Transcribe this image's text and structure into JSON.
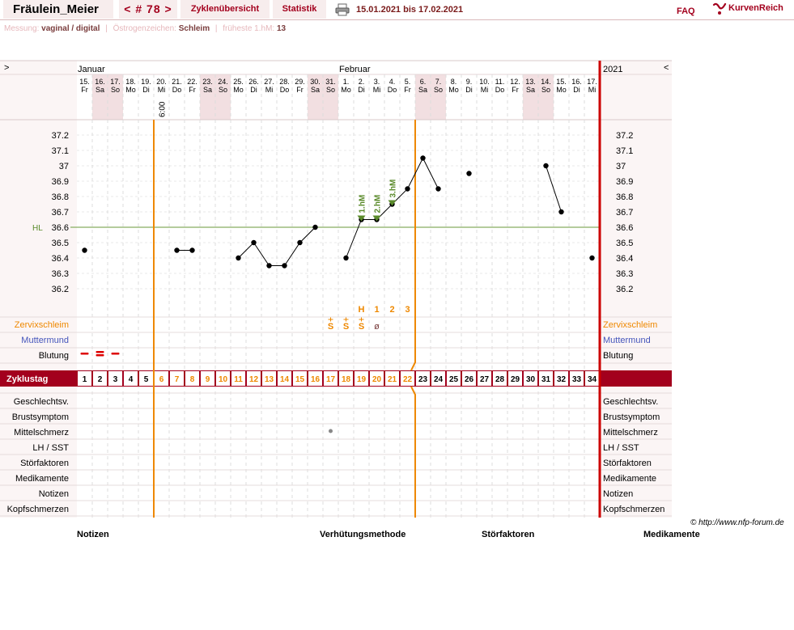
{
  "header": {
    "username": "Fräulein_Meier",
    "cycle_label": "< # 78 >",
    "overview_label": "Zyklenübersicht",
    "stats_label": "Statistik",
    "date_range": "15.01.2021 bis 17.02.2021",
    "faq_label": "FAQ",
    "logo_text": "KurvenReich",
    "print_icon": "printer-icon"
  },
  "info": {
    "messung_label": "Messung:",
    "messung_value": "vaginal / digital",
    "oestrogen_label": "Östrogenzeichen:",
    "oestrogen_value": "Schleim",
    "hm_label": "früheste 1.hM:",
    "hm_value": "13"
  },
  "nav": {
    "left": ">",
    "right": "<"
  },
  "months": [
    {
      "label": "Januar",
      "start_day": 0
    },
    {
      "label": "Februar",
      "start_day": 17
    }
  ],
  "year_label": "2021",
  "cycle_row_label": "Zyklustag",
  "temp_time_label": "6:00",
  "hl_label": "HL",
  "chart_data": {
    "type": "line",
    "title": "",
    "ylabel": "",
    "ylim": [
      36.15,
      37.25
    ],
    "yticks": [
      "37.2",
      "37.1",
      "37",
      "36.9",
      "36.8",
      "36.7",
      "36.6",
      "36.5",
      "36.4",
      "36.3",
      "36.2"
    ],
    "days": [
      {
        "d": "15.",
        "w": "Fr"
      },
      {
        "d": "16.",
        "w": "Sa"
      },
      {
        "d": "17.",
        "w": "So"
      },
      {
        "d": "18.",
        "w": "Mo"
      },
      {
        "d": "19.",
        "w": "Di"
      },
      {
        "d": "20.",
        "w": "Mi"
      },
      {
        "d": "21.",
        "w": "Do"
      },
      {
        "d": "22.",
        "w": "Fr"
      },
      {
        "d": "23.",
        "w": "Sa"
      },
      {
        "d": "24.",
        "w": "So"
      },
      {
        "d": "25.",
        "w": "Mo"
      },
      {
        "d": "26.",
        "w": "Di"
      },
      {
        "d": "27.",
        "w": "Mi"
      },
      {
        "d": "28.",
        "w": "Do"
      },
      {
        "d": "29.",
        "w": "Fr"
      },
      {
        "d": "30.",
        "w": "Sa"
      },
      {
        "d": "31.",
        "w": "So"
      },
      {
        "d": "1.",
        "w": "Mo"
      },
      {
        "d": "2.",
        "w": "Di"
      },
      {
        "d": "3.",
        "w": "Mi"
      },
      {
        "d": "4.",
        "w": "Do"
      },
      {
        "d": "5.",
        "w": "Fr"
      },
      {
        "d": "6.",
        "w": "Sa"
      },
      {
        "d": "7.",
        "w": "So"
      },
      {
        "d": "8.",
        "w": "Mo"
      },
      {
        "d": "9.",
        "w": "Di"
      },
      {
        "d": "10.",
        "w": "Mi"
      },
      {
        "d": "11.",
        "w": "Do"
      },
      {
        "d": "12.",
        "w": "Fr"
      },
      {
        "d": "13.",
        "w": "Sa"
      },
      {
        "d": "14.",
        "w": "So"
      },
      {
        "d": "15.",
        "w": "Mo"
      },
      {
        "d": "16.",
        "w": "Di"
      },
      {
        "d": "17.",
        "w": "Mi"
      }
    ],
    "temperatures": [
      36.45,
      null,
      null,
      null,
      null,
      null,
      36.45,
      36.45,
      null,
      null,
      36.4,
      36.5,
      36.35,
      36.35,
      36.5,
      36.6,
      null,
      36.4,
      36.65,
      36.65,
      36.75,
      36.85,
      37.05,
      36.85,
      null,
      36.95,
      null,
      null,
      null,
      null,
      37.0,
      36.7,
      null,
      36.4
    ],
    "coverline": 36.6,
    "hm_markers": [
      {
        "day_index": 18,
        "label": "1.hM"
      },
      {
        "day_index": 19,
        "label": "2.hM"
      },
      {
        "day_index": 20,
        "label": "3.hM"
      }
    ],
    "peak_labels": [
      {
        "day_index": 18,
        "label": "H"
      },
      {
        "day_index": 19,
        "label": "1"
      },
      {
        "day_index": 20,
        "label": "2"
      },
      {
        "day_index": 21,
        "label": "3"
      }
    ],
    "mucus": [
      {
        "day_index": 16,
        "label": "S"
      },
      {
        "day_index": 17,
        "label": "S"
      },
      {
        "day_index": 18,
        "label": "S"
      },
      {
        "day_index": 19,
        "label": "ø"
      }
    ],
    "bleeding": [
      {
        "day_index": 0,
        "level": 1
      },
      {
        "day_index": 1,
        "level": 2
      },
      {
        "day_index": 2,
        "level": 1
      }
    ],
    "mittelschmerz": [
      {
        "day_index": 16
      }
    ],
    "cycle_days": [
      1,
      2,
      3,
      4,
      5,
      6,
      7,
      8,
      9,
      10,
      11,
      12,
      13,
      14,
      15,
      16,
      17,
      18,
      19,
      20,
      21,
      22,
      23,
      24,
      25,
      26,
      27,
      28,
      29,
      30,
      31,
      32,
      33,
      34
    ],
    "orange_cycle_days": [
      6,
      7,
      8,
      9,
      10,
      11,
      12,
      13,
      14,
      15,
      16,
      17,
      18,
      19,
      20,
      21,
      22
    ],
    "rows_top": [
      {
        "label": "Zervixschleim",
        "color": "#ee8800"
      },
      {
        "label": "Muttermund",
        "color": "#4455bb"
      },
      {
        "label": "Blutung",
        "color": "#000000"
      }
    ],
    "rows_bottom": [
      "Geschlechtsv.",
      "Brustsymptom",
      "Mittelschmerz",
      "LH / SST",
      "Störfaktoren",
      "Medikamente",
      "Notizen",
      "Kopfschmerzen"
    ]
  },
  "colors": {
    "brand": "#a3001d",
    "orange": "#ee8800",
    "green": "#5a8a2a",
    "weekend": "#f2dfe1"
  },
  "footer": {
    "copyright": "© http://www.nfp-forum.de",
    "notes": "Notizen",
    "method": "Verhütungsmethode",
    "disturb": "Störfaktoren",
    "meds": "Medikamente"
  }
}
